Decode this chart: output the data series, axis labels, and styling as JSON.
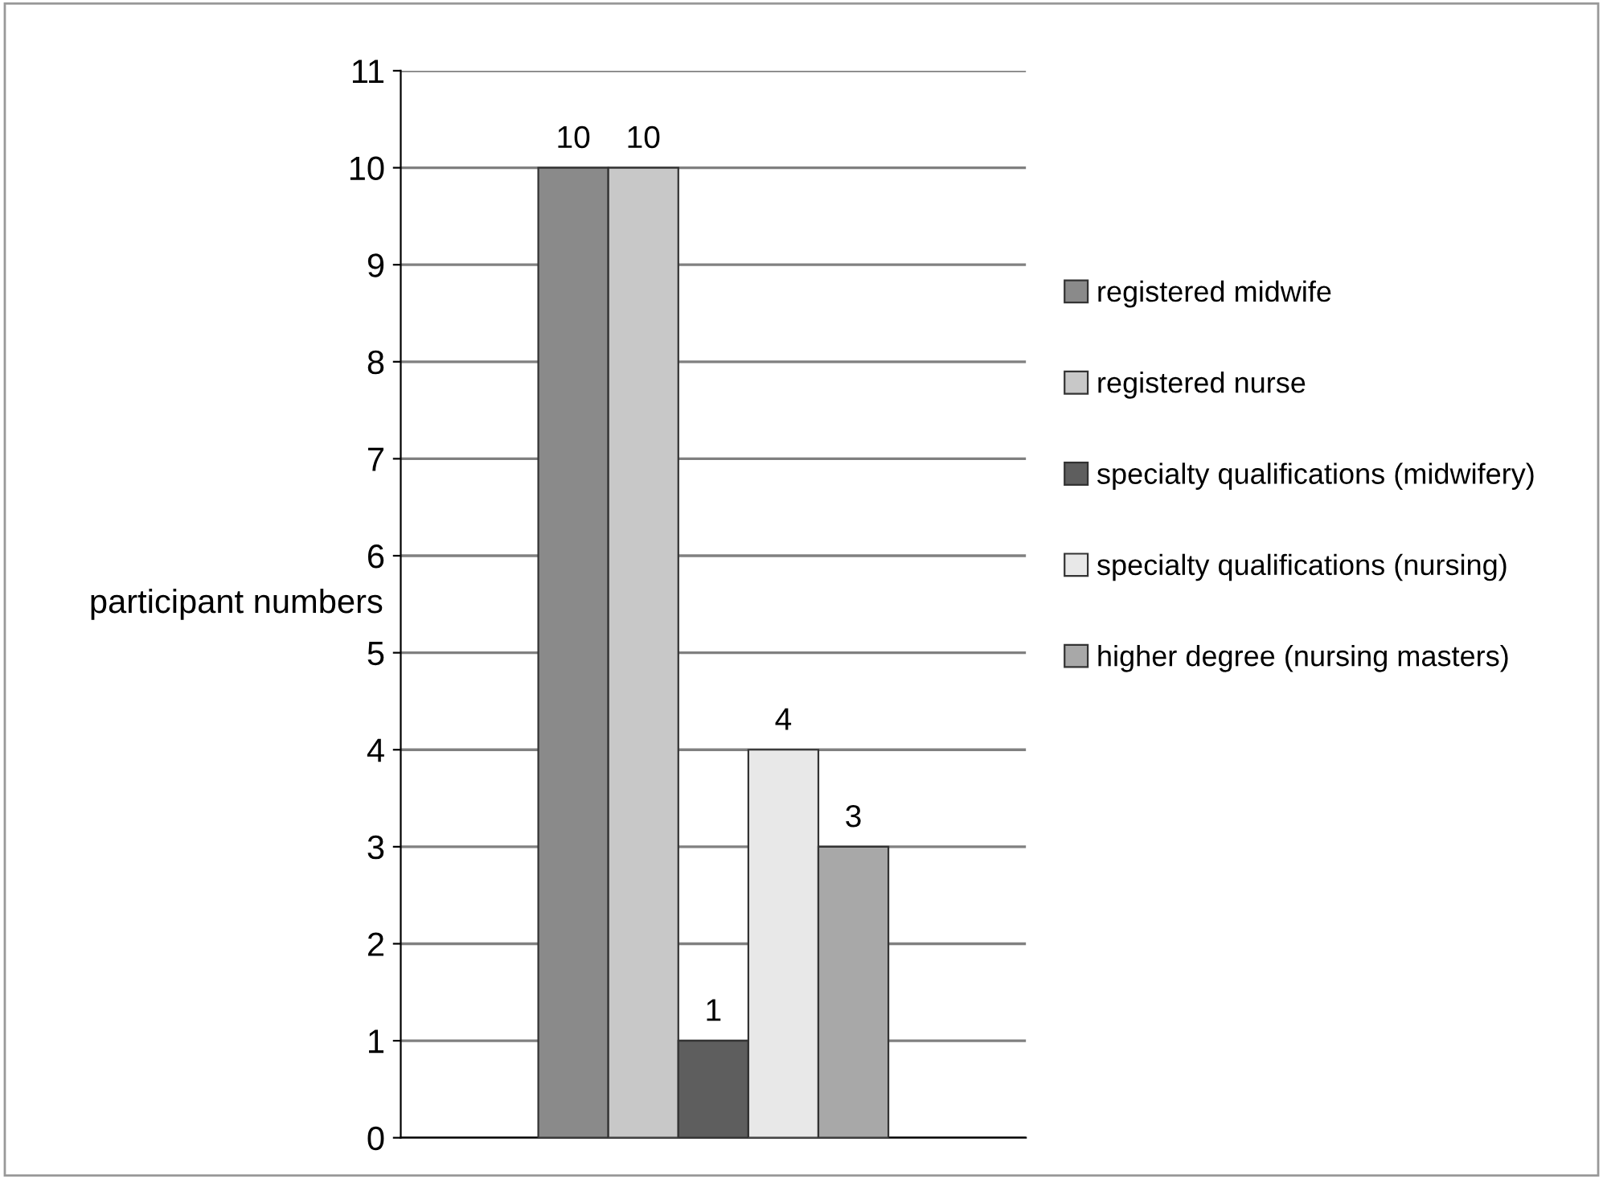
{
  "chart_data": {
    "type": "bar",
    "ylabel": "participant numbers",
    "categories": [
      null
    ],
    "series": [
      {
        "name": "registered midwife",
        "color": "#8a8a8a",
        "values": [
          10
        ]
      },
      {
        "name": "registered nurse",
        "color": "#c8c8c8",
        "values": [
          10
        ]
      },
      {
        "name": "specialty qualifications (midwifery)",
        "color": "#5e5e5e",
        "values": [
          1
        ]
      },
      {
        "name": "specialty qualifications (nursing)",
        "color": "#e8e8e8",
        "values": [
          4
        ]
      },
      {
        "name": "higher degree (nursing masters)",
        "color": "#a8a8a8",
        "values": [
          3
        ]
      }
    ],
    "ylim": [
      0,
      11
    ],
    "yticks": [
      0,
      1,
      2,
      3,
      4,
      5,
      6,
      7,
      8,
      9,
      10,
      11
    ],
    "grid": "y",
    "legend": "right",
    "data_labels": true
  }
}
